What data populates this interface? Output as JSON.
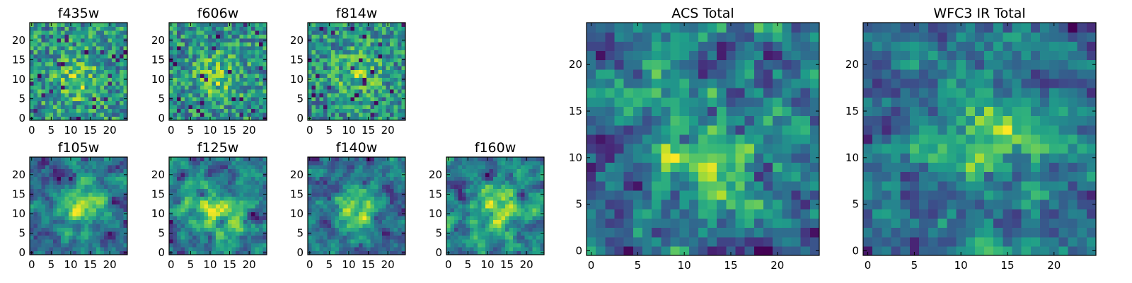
{
  "chart_data": [
    {
      "type": "heatmap",
      "title": "f435w",
      "colormap": "viridis",
      "grid": false,
      "xlim": [
        -0.5,
        24.5
      ],
      "ylim": [
        -0.5,
        24.5
      ],
      "xticks": [
        0,
        5,
        10,
        15,
        20
      ],
      "yticks": [
        0,
        5,
        10,
        15,
        20
      ],
      "xtick_labels": [
        "0",
        "5",
        "10",
        "15",
        "20"
      ],
      "ytick_labels": [
        "0",
        "5",
        "10",
        "15",
        "20"
      ]
    },
    {
      "type": "heatmap",
      "title": "f606w",
      "colormap": "viridis",
      "grid": false,
      "xlim": [
        -0.5,
        24.5
      ],
      "ylim": [
        -0.5,
        24.5
      ],
      "xticks": [
        0,
        5,
        10,
        15,
        20
      ],
      "yticks": [
        0,
        5,
        10,
        15,
        20
      ],
      "xtick_labels": [
        "0",
        "5",
        "10",
        "15",
        "20"
      ],
      "ytick_labels": [
        "0",
        "5",
        "10",
        "15",
        "20"
      ]
    },
    {
      "type": "heatmap",
      "title": "f814w",
      "colormap": "viridis",
      "grid": false,
      "xlim": [
        -0.5,
        24.5
      ],
      "ylim": [
        -0.5,
        24.5
      ],
      "xticks": [
        0,
        5,
        10,
        15,
        20
      ],
      "yticks": [
        0,
        5,
        10,
        15,
        20
      ],
      "xtick_labels": [
        "0",
        "5",
        "10",
        "15",
        "20"
      ],
      "ytick_labels": [
        "0",
        "5",
        "10",
        "15",
        "20"
      ]
    },
    {
      "type": "heatmap",
      "title": "f105w",
      "colormap": "viridis",
      "grid": false,
      "xlim": [
        -0.5,
        24.5
      ],
      "ylim": [
        -0.5,
        24.5
      ],
      "xticks": [
        0,
        5,
        10,
        15,
        20
      ],
      "yticks": [
        0,
        5,
        10,
        15,
        20
      ],
      "xtick_labels": [
        "0",
        "5",
        "10",
        "15",
        "20"
      ],
      "ytick_labels": [
        "0",
        "5",
        "10",
        "15",
        "20"
      ]
    },
    {
      "type": "heatmap",
      "title": "f125w",
      "colormap": "viridis",
      "grid": false,
      "xlim": [
        -0.5,
        24.5
      ],
      "ylim": [
        -0.5,
        24.5
      ],
      "xticks": [
        0,
        5,
        10,
        15,
        20
      ],
      "yticks": [
        0,
        5,
        10,
        15,
        20
      ],
      "xtick_labels": [
        "0",
        "5",
        "10",
        "15",
        "20"
      ],
      "ytick_labels": [
        "0",
        "5",
        "10",
        "15",
        "20"
      ]
    },
    {
      "type": "heatmap",
      "title": "f140w",
      "colormap": "viridis",
      "grid": false,
      "xlim": [
        -0.5,
        24.5
      ],
      "ylim": [
        -0.5,
        24.5
      ],
      "xticks": [
        0,
        5,
        10,
        15,
        20
      ],
      "yticks": [
        0,
        5,
        10,
        15,
        20
      ],
      "xtick_labels": [
        "0",
        "5",
        "10",
        "15",
        "20"
      ],
      "ytick_labels": [
        "0",
        "5",
        "10",
        "15",
        "20"
      ]
    },
    {
      "type": "heatmap",
      "title": "f160w",
      "colormap": "viridis",
      "grid": false,
      "xlim": [
        -0.5,
        24.5
      ],
      "ylim": [
        -0.5,
        24.5
      ],
      "xticks": [
        0,
        5,
        10,
        15,
        20
      ],
      "yticks": [
        0,
        5,
        10,
        15,
        20
      ],
      "xtick_labels": [
        "0",
        "5",
        "10",
        "15",
        "20"
      ],
      "ytick_labels": [
        "0",
        "5",
        "10",
        "15",
        "20"
      ]
    },
    {
      "type": "heatmap",
      "title": "ACS Total",
      "colormap": "viridis",
      "grid": false,
      "xlim": [
        -0.5,
        24.5
      ],
      "ylim": [
        -0.5,
        24.5
      ],
      "xticks": [
        0,
        5,
        10,
        15,
        20
      ],
      "yticks": [
        0,
        5,
        10,
        15,
        20
      ],
      "xtick_labels": [
        "0",
        "5",
        "10",
        "15",
        "20"
      ],
      "ytick_labels": [
        "0",
        "5",
        "10",
        "15",
        "20"
      ]
    },
    {
      "type": "heatmap",
      "title": "WFC3 IR Total",
      "colormap": "viridis",
      "grid": false,
      "xlim": [
        -0.5,
        24.5
      ],
      "ylim": [
        -0.5,
        24.5
      ],
      "xticks": [
        0,
        5,
        10,
        15,
        20
      ],
      "yticks": [
        0,
        5,
        10,
        15,
        20
      ],
      "xtick_labels": [
        "0",
        "5",
        "10",
        "15",
        "20"
      ],
      "ytick_labels": [
        "0",
        "5",
        "10",
        "15",
        "20"
      ]
    }
  ]
}
